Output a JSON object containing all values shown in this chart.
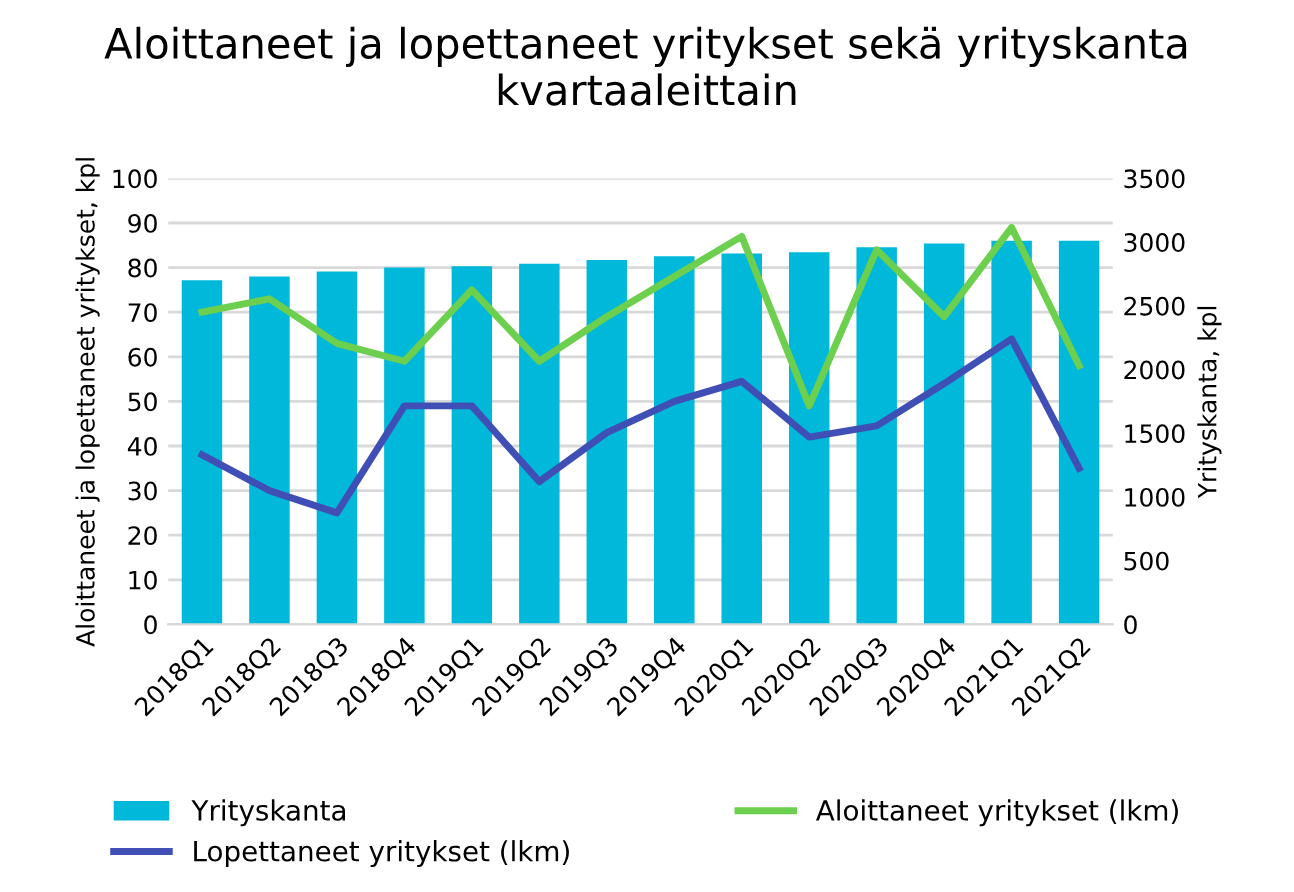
{
  "chart_data": {
    "type": "bar",
    "title": "Aloittaneet ja lopettaneet yritykset sekä yrityskanta kvartaaleittain",
    "categories": [
      "2018Q1",
      "2018Q2",
      "2018Q3",
      "2018Q4",
      "2019Q1",
      "2019Q2",
      "2019Q3",
      "2019Q4",
      "2020Q1",
      "2020Q2",
      "2020Q3",
      "2020Q4",
      "2021Q1",
      "2021Q2"
    ],
    "series": [
      {
        "name": "Yrityskanta",
        "axis": "y2",
        "color": "#00b8d9",
        "values": [
          2700,
          2730,
          2770,
          2800,
          2810,
          2830,
          2860,
          2890,
          2910,
          2920,
          2960,
          2990,
          3010,
          3010
        ]
      },
      {
        "name": "Aloittaneet yritykset (lkm)",
        "type": "line",
        "color": "#6cd04e",
        "values": [
          70,
          73,
          63,
          59,
          75,
          59,
          69,
          78,
          87,
          49,
          84,
          69,
          89,
          58
        ]
      },
      {
        "name": "Lopettaneet yritykset (lkm)",
        "type": "line",
        "color": "#3f4fb5",
        "values": [
          38,
          30,
          25,
          49,
          49,
          32,
          43,
          50,
          54.5,
          42,
          44.5,
          54,
          64,
          35
        ]
      }
    ],
    "ylabel": "Aloittaneet ja lopettaneet yritykset, kpl",
    "y2label": "Yrityskanta, kpl",
    "ylim": [
      0,
      100
    ],
    "yticks": [
      0,
      10,
      20,
      30,
      40,
      50,
      60,
      70,
      80,
      90,
      100
    ],
    "y2lim": [
      0,
      3500
    ],
    "y2ticks": [
      0,
      500,
      1000,
      1500,
      2000,
      2500,
      3000,
      3500
    ],
    "grid": "y",
    "legend": "bottom",
    "line_style": "solid",
    "marker": "none"
  }
}
